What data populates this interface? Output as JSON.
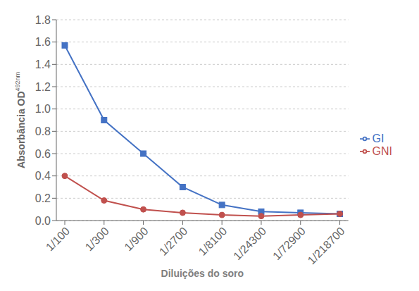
{
  "chart_data": {
    "type": "line",
    "x_label": "Diluições do soro",
    "y_label": "Absorbância OD",
    "annotations": [
      "492nm"
    ],
    "categories": [
      "1/100",
      "1/300",
      "1/900",
      "1/2700",
      "1/8100",
      "1/24300",
      "1/72900",
      "1/218700"
    ],
    "series": [
      {
        "name": "GI",
        "color": "#4472C4",
        "marker": "square",
        "values": [
          1.57,
          0.9,
          0.6,
          0.3,
          0.14,
          0.08,
          0.07,
          0.06
        ]
      },
      {
        "name": "GNI",
        "color": "#C0504D",
        "marker": "circle",
        "values": [
          0.4,
          0.18,
          0.1,
          0.07,
          0.05,
          0.04,
          0.05,
          0.06
        ]
      }
    ],
    "ylim": [
      0,
      1.8
    ],
    "yticks": [
      {
        "value": 0,
        "label": "0.0"
      },
      0.2,
      0.4,
      0.6,
      0.8,
      {
        "value": 1,
        "label": "1.0"
      },
      1.2,
      1.4,
      1.6,
      1.8
    ],
    "grid": true,
    "legend": "right"
  }
}
